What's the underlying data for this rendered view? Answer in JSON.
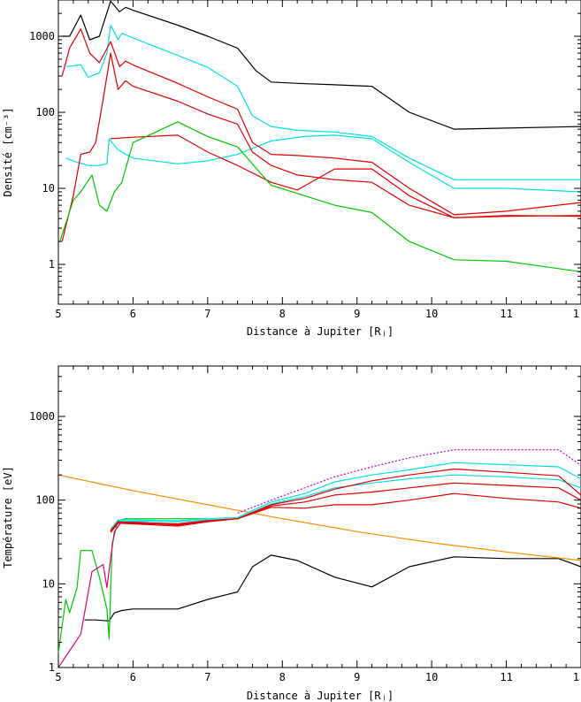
{
  "chart_data": [
    {
      "type": "line",
      "ylabel": "Densité [cm⁻³]",
      "xlabel": "Distance à Jupiter [Rⱼ]",
      "yscale": "log",
      "xlim": [
        5,
        12
      ],
      "ylim": [
        0.3,
        3000
      ],
      "xticks": [
        "5",
        "6",
        "7",
        "8",
        "9",
        "10",
        "11",
        "1"
      ],
      "yticks": [
        "1",
        "10",
        "100",
        "1000"
      ],
      "grid": false,
      "series": [
        {
          "color": "#000000",
          "x": [
            5.05,
            5.15,
            5.3,
            5.42,
            5.55,
            5.7,
            5.82,
            5.9,
            6.0,
            6.6,
            7.0,
            7.4,
            7.65,
            7.85,
            8.2,
            8.7,
            9.2,
            9.7,
            10.3,
            11.0,
            12.0
          ],
          "y": [
            1000,
            1000,
            1900,
            900,
            1000,
            2900,
            2100,
            2400,
            2200,
            1400,
            1000,
            700,
            350,
            250,
            240,
            230,
            220,
            100,
            60,
            62,
            65
          ]
        },
        {
          "color": "#00e0e0",
          "x": [
            5.1,
            5.3,
            5.4,
            5.55,
            5.65,
            5.7,
            5.8,
            5.85,
            6.0,
            6.6,
            7.0,
            7.4,
            7.6,
            7.85,
            8.2,
            8.7,
            9.2,
            9.7,
            10.3,
            11.0,
            12.0
          ],
          "y": [
            400,
            420,
            290,
            330,
            600,
            1400,
            900,
            1100,
            950,
            560,
            390,
            220,
            90,
            65,
            58,
            55,
            48,
            25,
            13,
            13,
            13
          ]
        },
        {
          "color": "#00e0e0",
          "x": [
            5.1,
            5.25,
            5.4,
            5.55,
            5.65,
            5.68,
            5.8,
            6.0,
            6.6,
            7.0,
            7.4,
            7.85,
            8.3,
            8.7,
            9.2,
            9.7,
            10.3,
            11.0,
            12.0
          ],
          "y": [
            25,
            22,
            20,
            20,
            21,
            45,
            32,
            25,
            21,
            23,
            28,
            42,
            48,
            50,
            45,
            22,
            10,
            10,
            9
          ]
        },
        {
          "color": "#e00000",
          "x": [
            5.05,
            5.15,
            5.3,
            5.42,
            5.55,
            5.7,
            5.82,
            5.9,
            6.0,
            6.6,
            7.0,
            7.4,
            7.6,
            7.85,
            8.2,
            8.7,
            9.2,
            9.7,
            10.3,
            11.0,
            12.0
          ],
          "y": [
            300,
            700,
            1250,
            600,
            450,
            850,
            400,
            470,
            420,
            240,
            160,
            110,
            40,
            28,
            27,
            25,
            22,
            10,
            4.5,
            5,
            6.5
          ]
        },
        {
          "color": "#e00000",
          "x": [
            5.05,
            5.2,
            5.3,
            5.42,
            5.5,
            5.6,
            5.7,
            5.8,
            5.9,
            6.0,
            6.6,
            7.0,
            7.4,
            7.6,
            7.85,
            8.2,
            8.7,
            9.2,
            9.7,
            10.3,
            11.0,
            12.0
          ],
          "y": [
            2,
            8,
            28,
            30,
            40,
            150,
            600,
            200,
            260,
            220,
            140,
            95,
            70,
            30,
            20,
            15,
            13,
            12,
            6,
            4.1,
            4.4,
            4.3
          ]
        },
        {
          "color": "#e00000",
          "x": [
            5.7,
            6.0,
            6.6,
            7.0,
            7.4,
            7.85,
            8.2,
            8.7,
            9.2,
            9.7,
            10.3,
            11.0,
            12.0
          ],
          "y": [
            45,
            47,
            50,
            30,
            20,
            12,
            9.5,
            18,
            18,
            8,
            4.1,
            4.3,
            4.4
          ]
        },
        {
          "color": "#00c800",
          "x": [
            5.02,
            5.2,
            5.3,
            5.45,
            5.55,
            5.65,
            5.75,
            5.85,
            6.0,
            6.6,
            7.0,
            7.4,
            7.85,
            8.3,
            8.7,
            9.2,
            9.7,
            10.3,
            11.0,
            12.0
          ],
          "y": [
            2,
            7,
            9,
            15,
            6,
            5,
            9,
            12,
            40,
            75,
            48,
            35,
            11,
            8,
            6,
            4.8,
            2,
            1.15,
            1.1,
            0.8
          ]
        }
      ]
    },
    {
      "type": "line",
      "ylabel": "Température [eV]",
      "xlabel": "Distance à Jupiter [Rⱼ]",
      "yscale": "log",
      "xlim": [
        5,
        12
      ],
      "ylim": [
        1,
        4000
      ],
      "xticks": [
        "5",
        "6",
        "7",
        "8",
        "9",
        "10",
        "11",
        "1"
      ],
      "yticks": [
        "1",
        "10",
        "100",
        "1000"
      ],
      "grid": false,
      "series": [
        {
          "color": "#000000",
          "x": [
            5.35,
            5.5,
            5.68,
            5.75,
            5.85,
            6.0,
            6.6,
            7.0,
            7.4,
            7.6,
            7.85,
            8.2,
            8.7,
            9.2,
            9.7,
            10.3,
            11.0,
            11.7,
            12.0
          ],
          "y": [
            3.7,
            3.7,
            3.6,
            4.5,
            4.8,
            5,
            5,
            6.5,
            8,
            16,
            22,
            19,
            12,
            9.2,
            16,
            21,
            20,
            20,
            16
          ]
        },
        {
          "color": "#ff8c00",
          "x": [
            5.0,
            6.0,
            7.0,
            8.0,
            9.0,
            10.0,
            11.0,
            12.0
          ],
          "y": [
            200,
            130,
            88,
            60,
            42,
            31,
            24,
            19
          ]
        },
        {
          "color": "#00c800",
          "x": [
            5.0,
            5.1,
            5.15,
            5.25,
            5.3,
            5.45,
            5.55,
            5.65,
            5.68,
            5.72,
            5.8,
            5.9,
            6.0,
            6.6,
            7.0
          ],
          "y": [
            1.5,
            6.5,
            4.5,
            9,
            25,
            25,
            12,
            5,
            2.2,
            30,
            57,
            60,
            60,
            60,
            60
          ]
        },
        {
          "color": "#e0007a",
          "x": [
            5.0,
            5.3,
            5.45,
            5.6,
            5.65,
            5.7,
            5.75,
            5.85,
            6.0,
            6.6,
            7.0
          ],
          "y": [
            1.0,
            2.5,
            14,
            17,
            9,
            20,
            42,
            56,
            55,
            50,
            58
          ]
        },
        {
          "color": "#cc00cc",
          "dashed": true,
          "x": [
            7.4,
            7.85,
            8.3,
            8.7,
            9.2,
            9.7,
            10.3,
            11.0,
            11.7,
            12.0
          ],
          "y": [
            70,
            100,
            140,
            190,
            250,
            320,
            400,
            400,
            400,
            260
          ]
        },
        {
          "color": "#00e0e0",
          "x": [
            5.7,
            5.8,
            6.0,
            6.6,
            7.0,
            7.4,
            7.85,
            8.3,
            8.7,
            9.2,
            9.7,
            10.3,
            11.0,
            11.7,
            12.0
          ],
          "y": [
            45,
            58,
            58,
            57,
            60,
            62,
            95,
            120,
            165,
            200,
            230,
            280,
            265,
            250,
            180
          ]
        },
        {
          "color": "#00e0e0",
          "x": [
            5.7,
            5.8,
            6.0,
            6.6,
            7.0,
            7.4,
            7.85,
            8.3,
            8.7,
            9.2,
            9.7,
            10.3,
            11.0,
            11.7,
            12.0
          ],
          "y": [
            44,
            56,
            56,
            55,
            58,
            60,
            90,
            110,
            140,
            160,
            180,
            200,
            190,
            175,
            140
          ]
        },
        {
          "color": "#e00000",
          "x": [
            5.7,
            5.8,
            6.0,
            6.6,
            7.0,
            7.4,
            7.85,
            8.3,
            8.7,
            9.2,
            9.7,
            10.3,
            11.0,
            11.7,
            12.0
          ],
          "y": [
            43,
            55,
            54,
            52,
            57,
            60,
            88,
            105,
            135,
            170,
            200,
            235,
            215,
            195,
            115
          ]
        },
        {
          "color": "#e00000",
          "x": [
            5.7,
            5.8,
            6.0,
            6.6,
            7.0,
            7.4,
            7.85,
            8.3,
            8.7,
            9.2,
            9.7,
            10.3,
            11.0,
            11.7,
            12.0
          ],
          "y": [
            42,
            54,
            53,
            51,
            56,
            60,
            85,
            95,
            115,
            125,
            140,
            160,
            150,
            140,
            100
          ]
        },
        {
          "color": "#e00000",
          "x": [
            5.7,
            5.8,
            6.0,
            6.6,
            7.0,
            7.4,
            7.85,
            8.3,
            8.7,
            9.2,
            9.7,
            10.3,
            11.0,
            11.7,
            12.0
          ],
          "y": [
            41,
            53,
            52,
            49,
            55,
            60,
            82,
            80,
            88,
            88,
            100,
            120,
            105,
            95,
            80
          ]
        }
      ]
    }
  ]
}
